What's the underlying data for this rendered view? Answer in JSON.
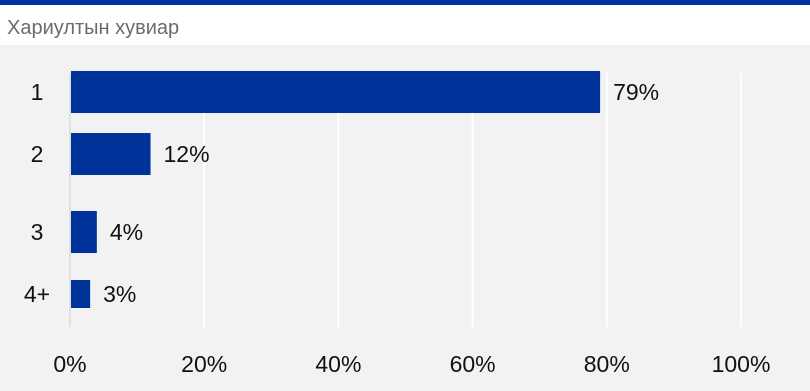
{
  "title": "Хариултын хувиар",
  "colors": {
    "bar": "#003399",
    "accent_rule": "#0033a0",
    "background": "#f2f2f2",
    "header_bg": "#ffffff"
  },
  "chart_data": {
    "type": "bar",
    "orientation": "horizontal",
    "categories": [
      "1",
      "2",
      "3",
      "4+"
    ],
    "values": [
      79,
      12,
      4,
      3
    ],
    "data_labels": [
      "79%",
      "12%",
      "4%",
      "3%"
    ],
    "x_ticks": [
      "0%",
      "20%",
      "40%",
      "60%",
      "80%",
      "100%"
    ],
    "xlim": [
      0,
      100
    ],
    "grid": true,
    "legend": "none"
  }
}
